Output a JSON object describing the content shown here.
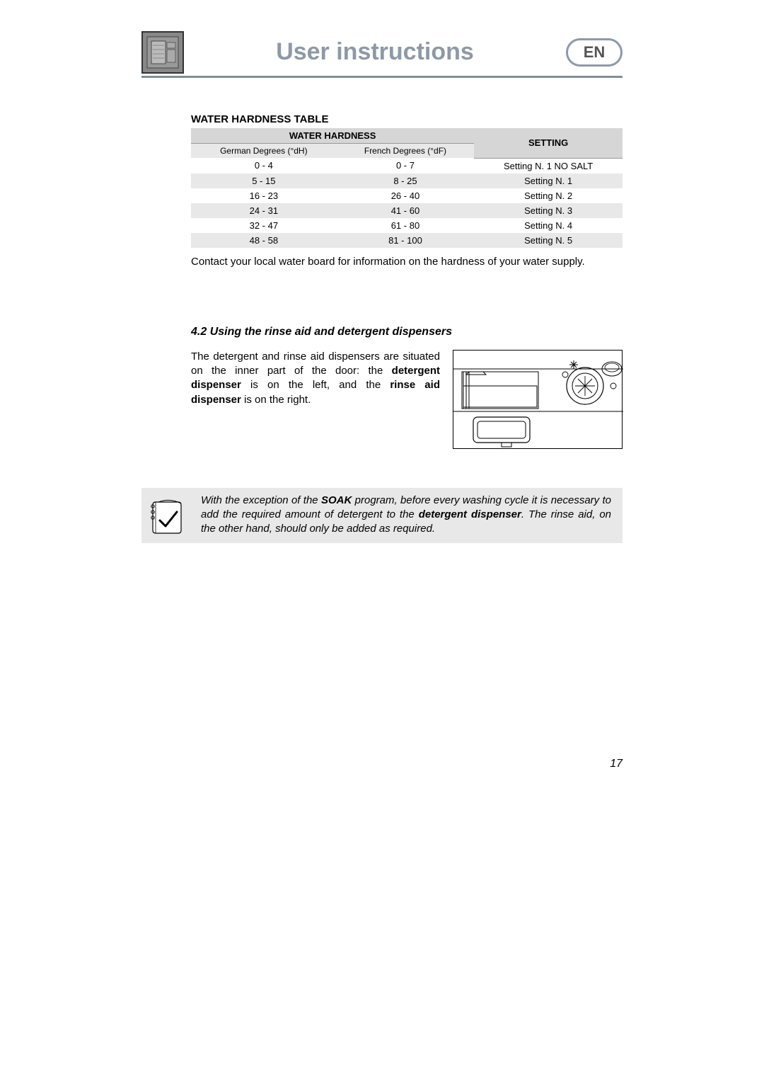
{
  "header": {
    "title": "User instructions",
    "lang": "EN"
  },
  "table": {
    "title": "WATER HARDNESS TABLE",
    "group_header": "WATER HARDNESS",
    "setting_header": "SETTING",
    "col1": "German Degrees (°dH)",
    "col2": "French Degrees (°dF)",
    "rows": [
      {
        "dh": "0 - 4",
        "df": "0 - 7",
        "setting": "Setting N. 1 NO SALT"
      },
      {
        "dh": "5 - 15",
        "df": "8 - 25",
        "setting": "Setting N. 1"
      },
      {
        "dh": "16 - 23",
        "df": "26 - 40",
        "setting": "Setting N. 2"
      },
      {
        "dh": "24 - 31",
        "df": "41 - 60",
        "setting": "Setting N. 3"
      },
      {
        "dh": "32 - 47",
        "df": "61 - 80",
        "setting": "Setting N. 4"
      },
      {
        "dh": "48 - 58",
        "df": "81 - 100",
        "setting": "Setting N. 5"
      }
    ]
  },
  "after_table_text": "Contact your local water board for information on the hardness of your water supply.",
  "section": {
    "heading": "4.2 Using the rinse aid and detergent dispensers",
    "text_pre": "The detergent and rinse aid dispensers are situated on the inner part of the door: the ",
    "bold1": "detergent dispenser",
    "text_mid": " is on the left, and the ",
    "bold2": "rinse aid dispenser",
    "text_post": " is on the right."
  },
  "note": {
    "pre": "With the exception of the ",
    "b1": "SOAK",
    "mid1": " program, before every washing cycle it is necessary to add the required amount of detergent to the ",
    "b2": "detergent dispenser",
    "post": ". The rinse aid, on the other hand, should  only be added as required."
  },
  "page_number": "17",
  "colors": {
    "header_gray": "#8e99a7",
    "underline": "#818d9d",
    "table_header_bg": "#d6d6d6",
    "row_alt_bg": "#e8e8e8",
    "note_bg": "#e8e8e8"
  }
}
